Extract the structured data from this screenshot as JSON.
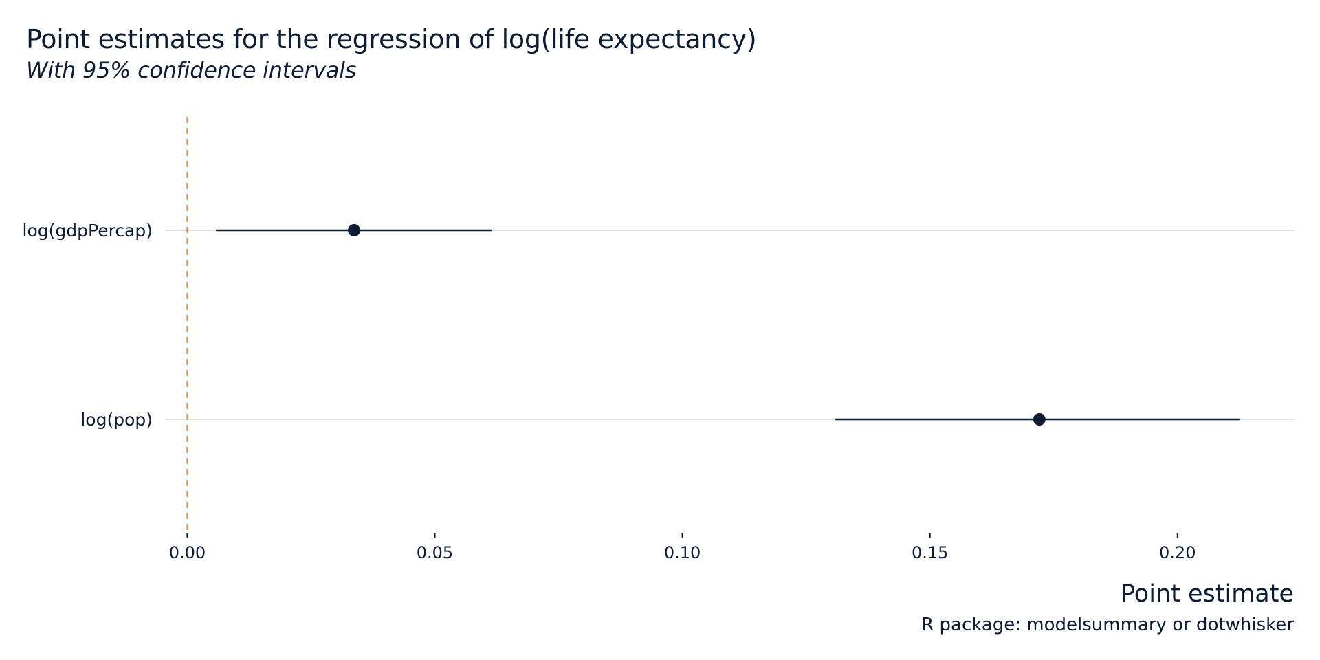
{
  "chart_data": {
    "type": "scatter",
    "subtype": "coefficient-plot",
    "title": "Point estimates for the regression of log(life expectancy)",
    "subtitle": "With 95% confidence intervals",
    "xlabel": "Point estimate",
    "ylabel": "",
    "caption": "R package: modelsummary or dotwhisker",
    "xlim": [
      -0.0045,
      0.2235
    ],
    "xticks": [
      0.0,
      0.05,
      0.1,
      0.15,
      0.2
    ],
    "xtick_labels": [
      "0.00",
      "0.05",
      "0.10",
      "0.15",
      "0.20"
    ],
    "grid": "horizontal",
    "reference_line": {
      "x": 0,
      "style": "dashed",
      "color": "#d9915a"
    },
    "point_color": "#0d1b33",
    "terms": [
      {
        "term": "log(gdpPercap)",
        "estimate": 0.0337,
        "conf_low": 0.0058,
        "conf_high": 0.0615
      },
      {
        "term": "log(pop)",
        "estimate": 0.1721,
        "conf_low": 0.1309,
        "conf_high": 0.2125
      }
    ]
  }
}
